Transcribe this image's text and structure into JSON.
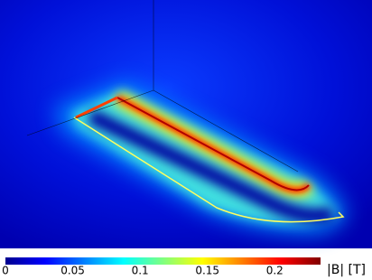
{
  "chart_data": {
    "type": "field-plot",
    "colorbar": {
      "label": "|B| [T]",
      "lim": [
        0,
        0.234
      ],
      "ticks": [
        0,
        0.05,
        0.1,
        0.15,
        0.2
      ],
      "colormap": [
        "#00008f",
        "#0000ff",
        "#0080ff",
        "#00ffff",
        "#80ff80",
        "#ffff00",
        "#ff8000",
        "#ff0000",
        "#800000"
      ]
    }
  }
}
